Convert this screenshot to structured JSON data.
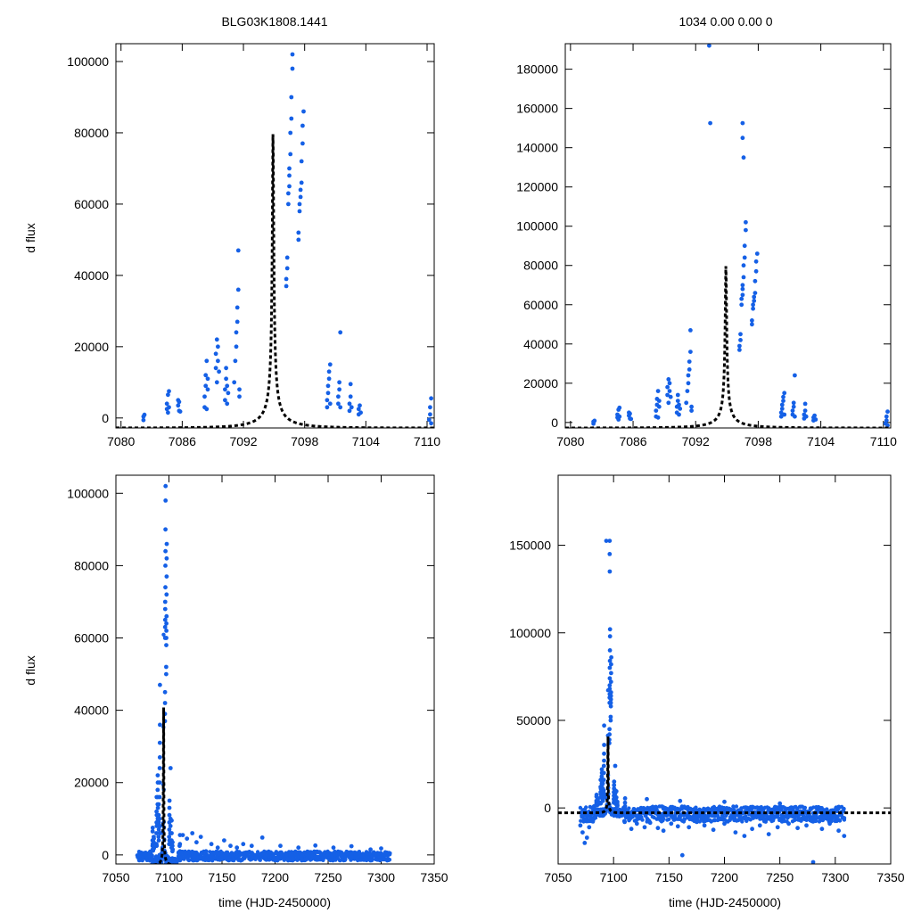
{
  "figure": {
    "title_left": "BLG03K1808.1441",
    "title_right": "1034   0.00   0.00   0",
    "ylabel": "d flux",
    "xlabel": "time (HJD-2450000)"
  },
  "colors": {
    "points": "#1560e6",
    "model": "#000000",
    "frame": "#000000"
  },
  "model": {
    "type": "pspl",
    "t0": 7094.9,
    "u0": 0.0125,
    "tE": 5.0,
    "amplitude": 80300,
    "offset": -2800
  },
  "chart_data": [
    {
      "type": "scatter",
      "panel": "top-left",
      "title": "BLG03K1808.1441",
      "xlabel": "",
      "ylabel": "d flux",
      "xlim": [
        7079.5,
        7110.7
      ],
      "ylim": [
        -2800,
        105000
      ],
      "xticks": [
        7080,
        7086,
        7092,
        7098,
        7104,
        7110
      ],
      "yticks": [
        0,
        20000,
        40000,
        60000,
        80000,
        100000
      ],
      "series": [
        {
          "name": "observations",
          "marker": "point",
          "source": "observations.main"
        },
        {
          "name": "model",
          "style": "dashed",
          "source": "model"
        }
      ]
    },
    {
      "type": "scatter",
      "panel": "top-right",
      "title": "1034   0.00   0.00   0",
      "xlabel": "",
      "ylabel": "",
      "xlim": [
        7079.5,
        7110.7
      ],
      "ylim": [
        -2800,
        193000
      ],
      "xticks": [
        7080,
        7086,
        7092,
        7098,
        7104,
        7110
      ],
      "yticks": [
        0,
        20000,
        40000,
        60000,
        80000,
        100000,
        120000,
        140000,
        160000,
        180000
      ],
      "series": [
        {
          "name": "observations",
          "marker": "point",
          "source": "observations.main+extra"
        },
        {
          "name": "model",
          "style": "dashed",
          "source": "model"
        }
      ]
    },
    {
      "type": "scatter",
      "panel": "bottom-left",
      "title": "",
      "xlabel": "time (HJD-2450000)",
      "ylabel": "d flux",
      "xlim": [
        7050,
        7350
      ],
      "ylim": [
        -2500,
        105000
      ],
      "xticks": [
        7050,
        7100,
        7150,
        7200,
        7250,
        7300,
        7350
      ],
      "yticks": [
        0,
        20000,
        40000,
        60000,
        80000,
        100000
      ],
      "series": [
        {
          "name": "observations",
          "marker": "point",
          "source": "observations.main+baseline_a"
        },
        {
          "name": "model",
          "style": "dashed",
          "source": "model"
        }
      ]
    },
    {
      "type": "scatter",
      "panel": "bottom-right",
      "title": "",
      "xlabel": "time (HJD-2450000)",
      "ylabel": "",
      "xlim": [
        7050,
        7350
      ],
      "ylim": [
        -32000,
        190000
      ],
      "xticks": [
        7050,
        7100,
        7150,
        7200,
        7250,
        7300,
        7350
      ],
      "yticks": [
        0,
        50000,
        100000,
        150000
      ],
      "series": [
        {
          "name": "observations",
          "marker": "point",
          "source": "observations.main+extra+baseline_b"
        },
        {
          "name": "model",
          "style": "dashed",
          "source": "model"
        }
      ]
    }
  ],
  "observations": {
    "main": [
      [
        7082.2,
        400
      ],
      [
        7082.2,
        -600
      ],
      [
        7082.3,
        900
      ],
      [
        7084.5,
        2500
      ],
      [
        7084.5,
        4000
      ],
      [
        7084.6,
        6500
      ],
      [
        7084.6,
        1500
      ],
      [
        7084.7,
        3000
      ],
      [
        7084.7,
        7500
      ],
      [
        7085.6,
        3500
      ],
      [
        7085.6,
        5000
      ],
      [
        7085.7,
        2000
      ],
      [
        7085.7,
        4500
      ],
      [
        7085.8,
        1800
      ],
      [
        7088.2,
        3000
      ],
      [
        7088.2,
        6000
      ],
      [
        7088.3,
        9000
      ],
      [
        7088.3,
        12000
      ],
      [
        7088.4,
        16000
      ],
      [
        7088.4,
        2500
      ],
      [
        7088.5,
        8000
      ],
      [
        7088.5,
        11000
      ],
      [
        7089.3,
        14000
      ],
      [
        7089.3,
        18000
      ],
      [
        7089.4,
        22000
      ],
      [
        7089.4,
        10000
      ],
      [
        7089.5,
        16000
      ],
      [
        7089.5,
        20000
      ],
      [
        7089.6,
        13000
      ],
      [
        7090.2,
        5000
      ],
      [
        7090.2,
        8000
      ],
      [
        7090.3,
        11000
      ],
      [
        7090.3,
        14000
      ],
      [
        7090.4,
        4000
      ],
      [
        7090.4,
        9000
      ],
      [
        7090.5,
        7000
      ],
      [
        7091.1,
        10000
      ],
      [
        7091.2,
        16000
      ],
      [
        7091.3,
        20000
      ],
      [
        7091.3,
        24000
      ],
      [
        7091.4,
        27000
      ],
      [
        7091.4,
        31000
      ],
      [
        7091.5,
        36000
      ],
      [
        7091.5,
        47000
      ],
      [
        7091.6,
        6000
      ],
      [
        7091.6,
        8000
      ],
      [
        7096.2,
        37000
      ],
      [
        7096.2,
        39000
      ],
      [
        7096.3,
        42000
      ],
      [
        7096.3,
        45000
      ],
      [
        7096.4,
        60000
      ],
      [
        7096.4,
        63000
      ],
      [
        7096.5,
        65000
      ],
      [
        7096.5,
        68000
      ],
      [
        7096.5,
        70000
      ],
      [
        7096.6,
        74000
      ],
      [
        7096.6,
        80000
      ],
      [
        7096.7,
        84000
      ],
      [
        7096.7,
        90000
      ],
      [
        7096.8,
        98000
      ],
      [
        7096.8,
        102000
      ],
      [
        7097.4,
        50000
      ],
      [
        7097.4,
        52000
      ],
      [
        7097.5,
        58000
      ],
      [
        7097.5,
        60000
      ],
      [
        7097.6,
        62000
      ],
      [
        7097.6,
        64000
      ],
      [
        7097.7,
        66000
      ],
      [
        7097.7,
        72000
      ],
      [
        7097.8,
        77000
      ],
      [
        7097.8,
        82000
      ],
      [
        7097.9,
        86000
      ],
      [
        7100.2,
        3000
      ],
      [
        7100.2,
        5000
      ],
      [
        7100.3,
        7000
      ],
      [
        7100.3,
        9000
      ],
      [
        7100.4,
        11000
      ],
      [
        7100.4,
        13000
      ],
      [
        7100.5,
        15000
      ],
      [
        7100.5,
        4000
      ],
      [
        7101.3,
        4000
      ],
      [
        7101.3,
        6000
      ],
      [
        7101.4,
        8000
      ],
      [
        7101.4,
        10000
      ],
      [
        7101.5,
        3000
      ],
      [
        7101.5,
        24000
      ],
      [
        7102.4,
        2000
      ],
      [
        7102.4,
        4000
      ],
      [
        7102.5,
        6000
      ],
      [
        7102.5,
        9500
      ],
      [
        7102.6,
        3000
      ],
      [
        7103.3,
        1000
      ],
      [
        7103.3,
        2500
      ],
      [
        7103.4,
        3500
      ],
      [
        7103.5,
        1500
      ],
      [
        7110.2,
        -500
      ],
      [
        7110.3,
        1000
      ],
      [
        7110.3,
        3000
      ],
      [
        7110.4,
        5500
      ],
      [
        7110.4,
        -1500
      ]
    ],
    "extra": [
      [
        7093.3,
        192000
      ],
      [
        7093.4,
        152500
      ],
      [
        7096.5,
        152500
      ],
      [
        7096.5,
        145000
      ],
      [
        7096.6,
        135000
      ]
    ],
    "baseline_a": [
      [
        7072,
        -1500
      ],
      [
        7075,
        -800
      ],
      [
        7078,
        600
      ],
      [
        7081,
        -1200
      ],
      [
        7085,
        1200
      ],
      [
        7110,
        2500
      ],
      [
        7113,
        5500
      ],
      [
        7117,
        4500
      ],
      [
        7122,
        6000
      ],
      [
        7126,
        3500
      ],
      [
        7130,
        5000
      ],
      [
        7135,
        1000
      ],
      [
        7140,
        3000
      ],
      [
        7146,
        2000
      ],
      [
        7152,
        4000
      ],
      [
        7158,
        2500
      ],
      [
        7164,
        2000
      ],
      [
        7170,
        3000
      ],
      [
        7178,
        2500
      ],
      [
        7188,
        4800
      ],
      [
        7205,
        2500
      ],
      [
        7222,
        2000
      ],
      [
        7238,
        2600
      ],
      [
        7255,
        2000
      ],
      [
        7272,
        2400
      ],
      [
        7290,
        1500
      ],
      [
        7300,
        1800
      ]
    ],
    "baseline_b": [
      [
        7070,
        -10000
      ],
      [
        7072,
        -14000
      ],
      [
        7074,
        -20000
      ],
      [
        7076,
        -17000
      ],
      [
        7078,
        -11000
      ],
      [
        7110,
        -8000
      ],
      [
        7116,
        -12000
      ],
      [
        7121,
        -9000
      ],
      [
        7128,
        -11000
      ],
      [
        7133,
        -8500
      ],
      [
        7140,
        -11500
      ],
      [
        7145,
        -13000
      ],
      [
        7152,
        -9000
      ],
      [
        7158,
        -10500
      ],
      [
        7162,
        -27000
      ],
      [
        7168,
        -11000
      ],
      [
        7175,
        -8000
      ],
      [
        7182,
        -10000
      ],
      [
        7190,
        -12500
      ],
      [
        7200,
        -9000
      ],
      [
        7210,
        -14000
      ],
      [
        7218,
        -16000
      ],
      [
        7225,
        -12000
      ],
      [
        7232,
        -10000
      ],
      [
        7240,
        -15000
      ],
      [
        7248,
        -11000
      ],
      [
        7258,
        -9000
      ],
      [
        7266,
        -11500
      ],
      [
        7274,
        -10000
      ],
      [
        7280,
        -31000
      ],
      [
        7288,
        -12000
      ],
      [
        7295,
        -9000
      ],
      [
        7303,
        -13000
      ],
      [
        7308,
        -16000
      ],
      [
        7130,
        5000
      ],
      [
        7160,
        4000
      ],
      [
        7200,
        3500
      ],
      [
        7250,
        2500
      ]
    ]
  }
}
